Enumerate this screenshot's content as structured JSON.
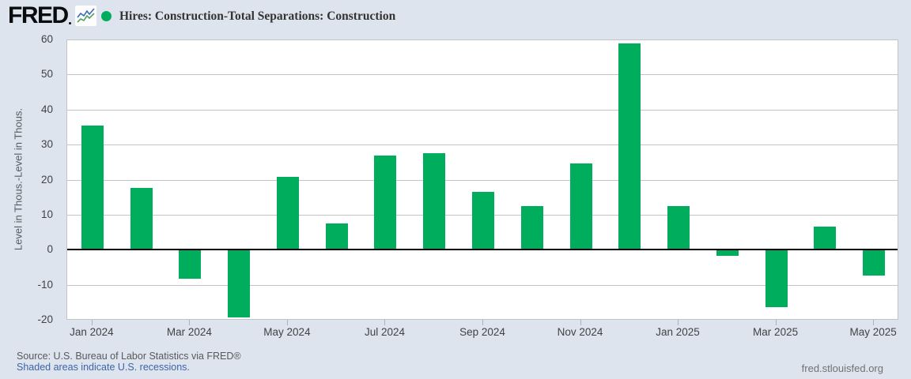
{
  "header": {
    "brand": "FRED",
    "title": "Hires: Construction-Total Separations: Construction"
  },
  "chart_data": {
    "type": "bar",
    "title": "Hires: Construction-Total Separations: Construction",
    "categories": [
      "Jan 2024",
      "Feb 2024",
      "Mar 2024",
      "Apr 2024",
      "May 2024",
      "Jun 2024",
      "Jul 2024",
      "Aug 2024",
      "Sep 2024",
      "Oct 2024",
      "Nov 2024",
      "Dec 2024",
      "Jan 2025",
      "Feb 2025",
      "Mar 2025",
      "Apr 2025",
      "May 2025"
    ],
    "values": [
      35.5,
      17.7,
      -8.3,
      -19.3,
      20.9,
      7.4,
      26.8,
      27.6,
      16.5,
      12.4,
      24.6,
      58.8,
      12.4,
      -1.7,
      -16.4,
      6.5,
      -7.4
    ],
    "xlabel": "",
    "ylabel": "Level in Thous.-Level in Thous.",
    "ylim": [
      -20,
      60
    ],
    "ytick_step": 10,
    "xtick_labels": [
      "Jan 2024",
      "Mar 2024",
      "May 2024",
      "Jul 2024",
      "Sep 2024",
      "Nov 2024",
      "Jan 2025",
      "Mar 2025",
      "May 2025"
    ],
    "grid": "on",
    "legend_position": "top-left",
    "legend_marker": "circle",
    "bar_color": "#00ad5c",
    "zero_line_color": "#000000",
    "grid_color": "#c4c4c4",
    "plot_bg": "#ffffff",
    "page_bg": "#dde4ed"
  },
  "footer": {
    "source": "Source: U.S. Bureau of Labor Statistics via FRED®",
    "recession_note": "Shaded areas indicate U.S. recessions.",
    "site": "fred.stlouisfed.org",
    "link_color": "#3d64a8"
  }
}
